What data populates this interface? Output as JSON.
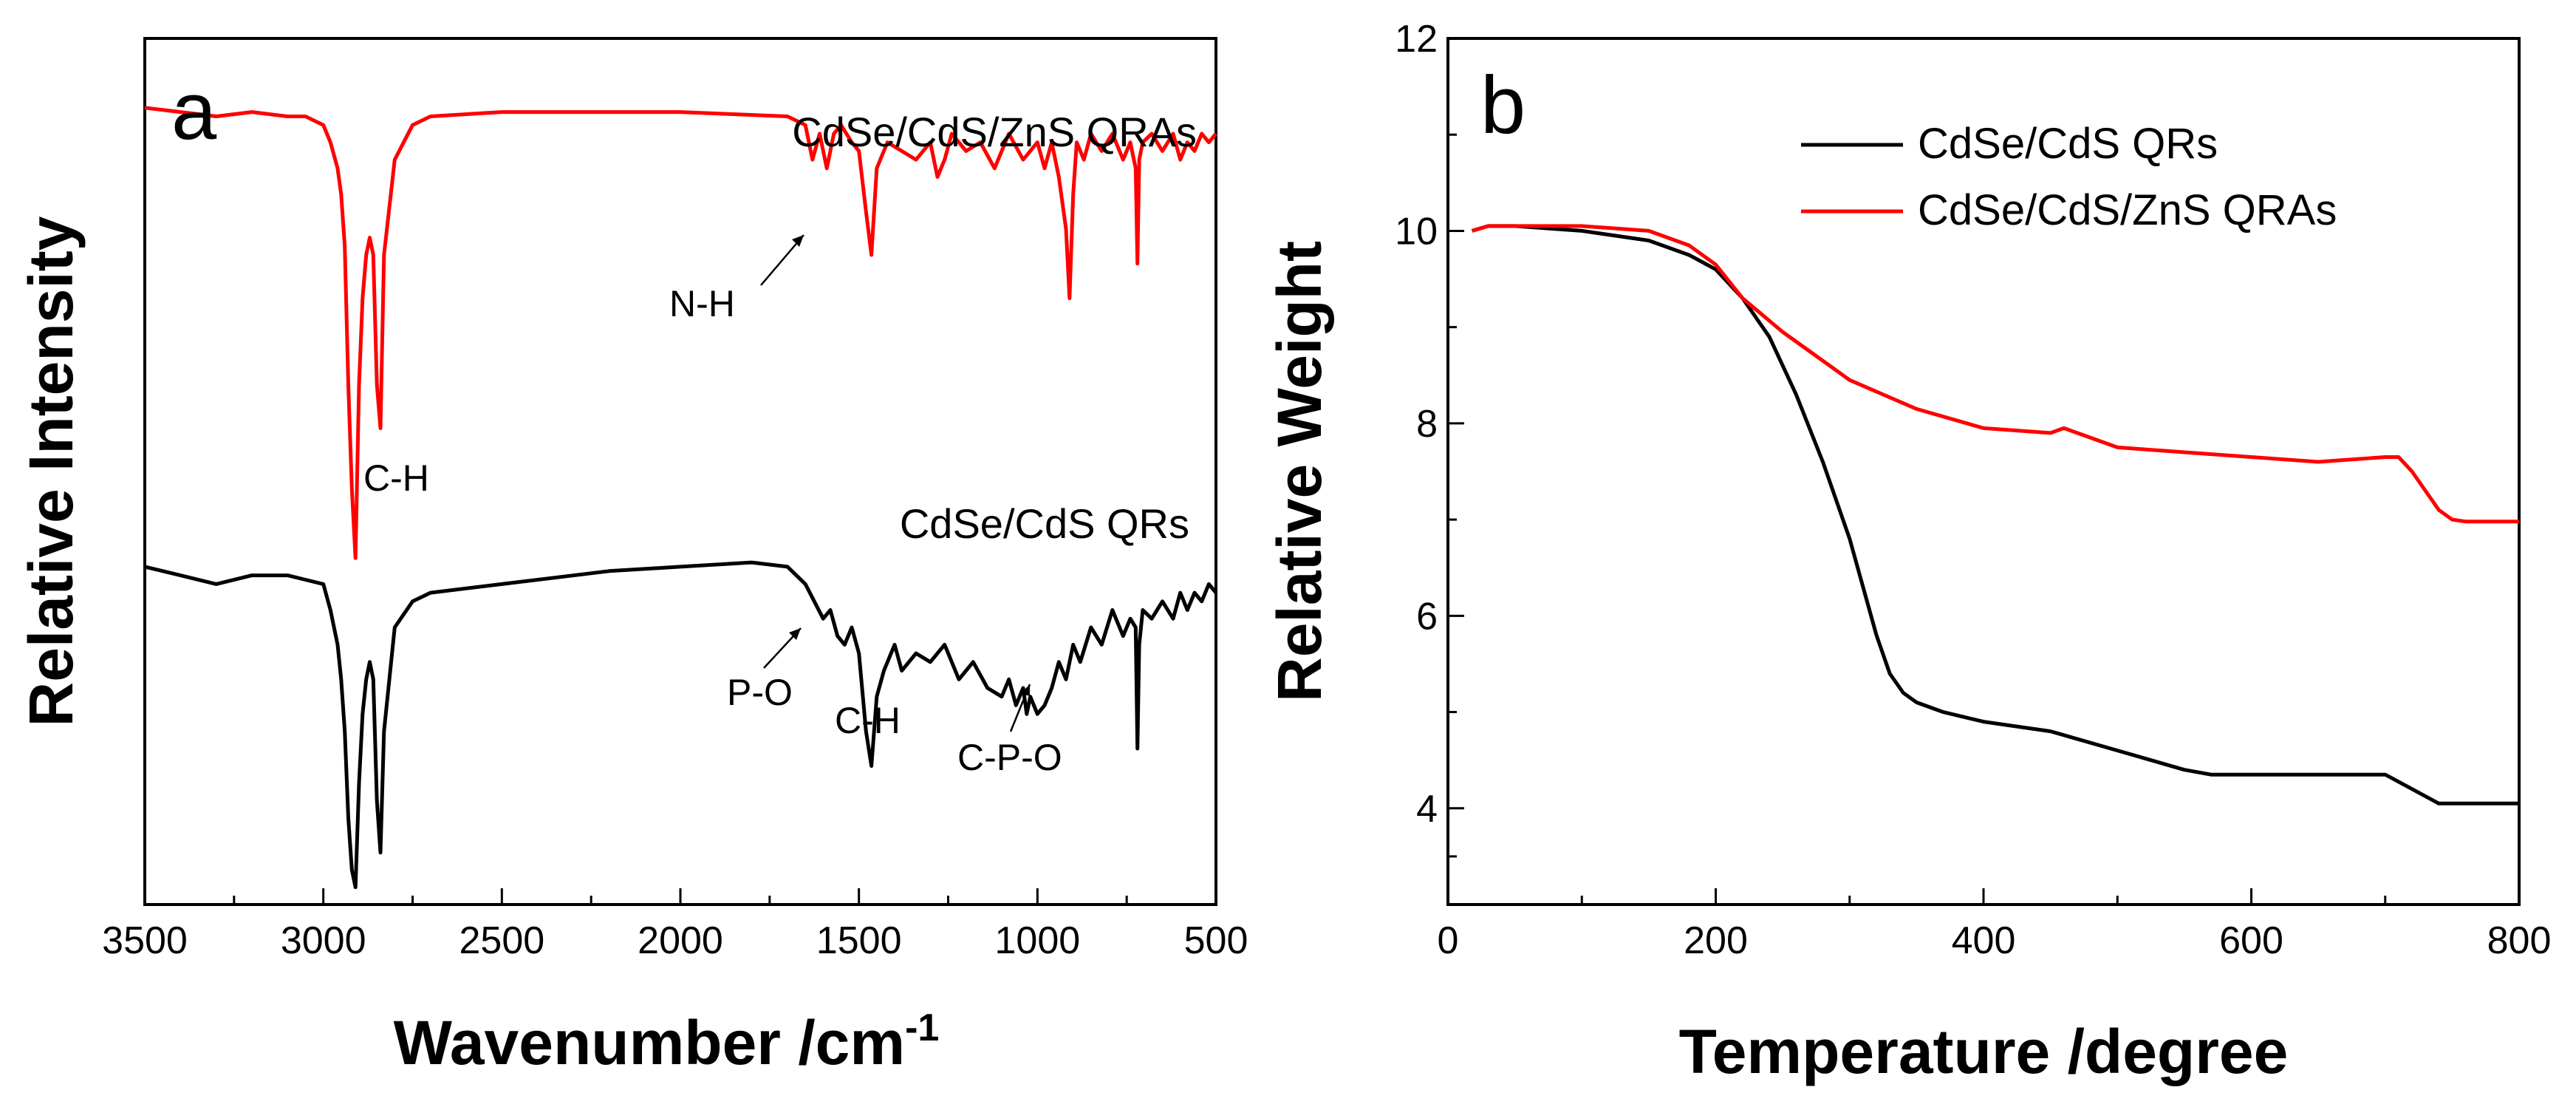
{
  "chart_data": [
    {
      "type": "line",
      "panel_label": "a",
      "title": "",
      "xlabel": "Wavenumber /cm",
      "xlabel_sup": "-1",
      "ylabel": "Relative Intensity",
      "xlim": [
        3500,
        500
      ],
      "ylim": [
        0,
        100
      ],
      "x_ticks": [
        3500,
        3000,
        2500,
        2000,
        1500,
        1000,
        500
      ],
      "y_ticks_visible": false,
      "series": [
        {
          "name": "CdSe/CdS/ZnS QRAs",
          "color": "#ff0000",
          "x": [
            3500,
            3400,
            3300,
            3200,
            3100,
            3050,
            3000,
            2980,
            2960,
            2950,
            2940,
            2930,
            2920,
            2910,
            2900,
            2890,
            2880,
            2870,
            2860,
            2850,
            2840,
            2830,
            2800,
            2750,
            2700,
            2500,
            2000,
            1700,
            1650,
            1640,
            1630,
            1610,
            1590,
            1570,
            1550,
            1520,
            1500,
            1480,
            1465,
            1450,
            1420,
            1380,
            1340,
            1300,
            1280,
            1260,
            1240,
            1200,
            1160,
            1120,
            1080,
            1040,
            1000,
            980,
            960,
            940,
            920,
            910,
            900,
            890,
            870,
            850,
            820,
            790,
            760,
            740,
            725,
            720,
            715,
            705,
            680,
            650,
            620,
            600,
            580,
            560,
            540,
            520,
            500
          ],
          "y": [
            92,
            91.5,
            91,
            91.5,
            91,
            91,
            90,
            88,
            85,
            82,
            76,
            60,
            48,
            40,
            60,
            70,
            75,
            77,
            75,
            60,
            55,
            75,
            86,
            90,
            91,
            91.5,
            91.5,
            91,
            90,
            88,
            86,
            89,
            85,
            89,
            90,
            88,
            87,
            80,
            75,
            85,
            88,
            87,
            86,
            88,
            84,
            86,
            89,
            87,
            88,
            85,
            89,
            86,
            88,
            85,
            88,
            84,
            78,
            70,
            82,
            88,
            86,
            89,
            87,
            89,
            86,
            88,
            85,
            74,
            86,
            88,
            89,
            87,
            89,
            86,
            88,
            87,
            89,
            88,
            89
          ]
        },
        {
          "name": "CdSe/CdS QRs",
          "color": "#000000",
          "x": [
            3500,
            3400,
            3300,
            3200,
            3100,
            3050,
            3000,
            2980,
            2960,
            2950,
            2940,
            2930,
            2920,
            2910,
            2900,
            2890,
            2880,
            2870,
            2860,
            2850,
            2840,
            2830,
            2800,
            2750,
            2700,
            2500,
            2200,
            2000,
            1800,
            1700,
            1650,
            1600,
            1580,
            1560,
            1540,
            1520,
            1500,
            1480,
            1465,
            1450,
            1430,
            1400,
            1380,
            1340,
            1300,
            1260,
            1220,
            1180,
            1140,
            1100,
            1080,
            1060,
            1040,
            1030,
            1020,
            1000,
            980,
            960,
            940,
            920,
            900,
            880,
            850,
            820,
            790,
            760,
            740,
            725,
            720,
            715,
            705,
            680,
            650,
            620,
            600,
            580,
            560,
            540,
            520,
            500
          ],
          "y": [
            39,
            38,
            37,
            38,
            38,
            37.5,
            37,
            34,
            30,
            26,
            20,
            10,
            4,
            2,
            14,
            22,
            26,
            28,
            26,
            12,
            6,
            20,
            32,
            35,
            36,
            37,
            38.5,
            39,
            39.5,
            39,
            37,
            33,
            34,
            31,
            30,
            32,
            29,
            20,
            16,
            24,
            27,
            30,
            27,
            29,
            28,
            30,
            26,
            28,
            25,
            24,
            26,
            23,
            25,
            22,
            24,
            22,
            23,
            25,
            28,
            26,
            30,
            28,
            32,
            30,
            34,
            31,
            33,
            32,
            18,
            30,
            34,
            33,
            35,
            33,
            36,
            34,
            36,
            35,
            37,
            36
          ]
        }
      ],
      "series_labels": [
        "CdSe/CdS/ZnS QRAs",
        "CdSe/CdS QRs"
      ],
      "annotations": [
        {
          "text": "C-H"
        },
        {
          "text": "N-H"
        },
        {
          "text": "P-O"
        },
        {
          "text": "C-H"
        },
        {
          "text": "C-P-O"
        }
      ]
    },
    {
      "type": "line",
      "panel_label": "b",
      "title": "",
      "xlabel": "Temperature /degree",
      "ylabel": "Relative Weight",
      "xlim": [
        0,
        800
      ],
      "ylim": [
        3,
        12
      ],
      "x_ticks": [
        0,
        200,
        400,
        600,
        800
      ],
      "y_ticks": [
        4,
        6,
        8,
        10,
        12
      ],
      "legend_position": "top-right",
      "series": [
        {
          "name": "CdSe/CdS QRs",
          "color": "#000000",
          "x": [
            18,
            30,
            50,
            100,
            150,
            180,
            200,
            220,
            240,
            260,
            280,
            300,
            310,
            320,
            330,
            340,
            350,
            370,
            400,
            450,
            500,
            550,
            570,
            600,
            650,
            700,
            720,
            740,
            800
          ],
          "y": [
            10.0,
            10.05,
            10.05,
            10.0,
            9.9,
            9.75,
            9.6,
            9.3,
            8.9,
            8.3,
            7.6,
            6.8,
            6.3,
            5.8,
            5.4,
            5.2,
            5.1,
            5.0,
            4.9,
            4.8,
            4.6,
            4.4,
            4.35,
            4.35,
            4.35,
            4.35,
            4.2,
            4.05,
            4.05
          ]
        },
        {
          "name": "CdSe/CdS/ZnS QRAs",
          "color": "#ff0000",
          "x": [
            18,
            30,
            50,
            100,
            150,
            180,
            200,
            220,
            250,
            280,
            300,
            350,
            400,
            450,
            460,
            470,
            500,
            550,
            600,
            650,
            700,
            710,
            720,
            730,
            740,
            750,
            760,
            800
          ],
          "y": [
            10.0,
            10.05,
            10.05,
            10.05,
            10.0,
            9.85,
            9.65,
            9.3,
            8.95,
            8.65,
            8.45,
            8.15,
            7.95,
            7.9,
            7.95,
            7.9,
            7.75,
            7.7,
            7.65,
            7.6,
            7.65,
            7.65,
            7.5,
            7.3,
            7.1,
            7.0,
            6.98,
            6.98
          ]
        }
      ]
    }
  ]
}
